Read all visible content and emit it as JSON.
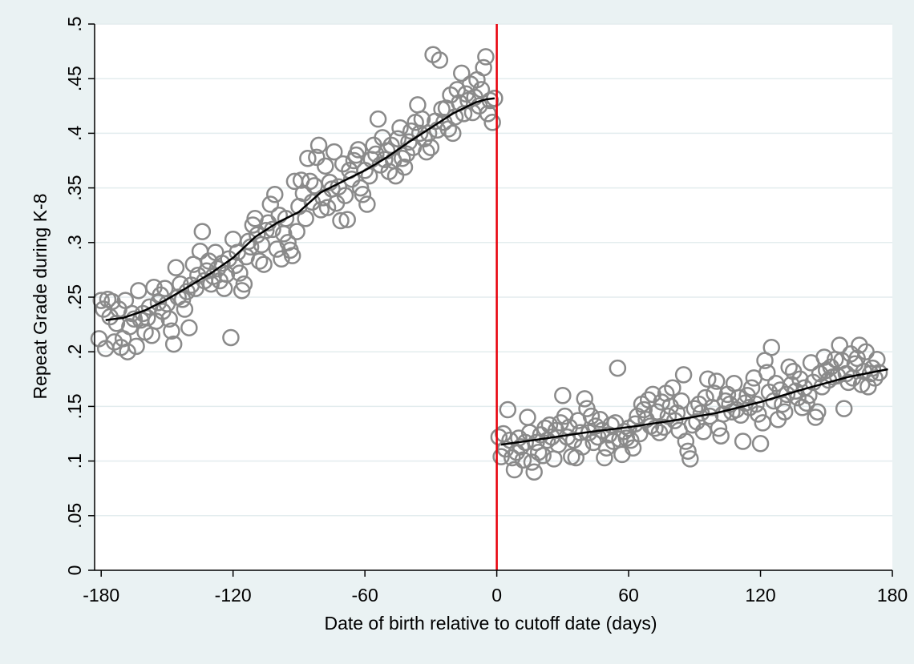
{
  "chart_data": {
    "type": "scatter",
    "title": "",
    "xlabel": "Date of birth relative to cutoff date (days)",
    "ylabel": "Repeat Grade during K-8",
    "xlim": [
      -183,
      180
    ],
    "ylim": [
      0,
      0.5
    ],
    "xticks": [
      -180,
      -120,
      -60,
      0,
      60,
      120,
      180
    ],
    "xtick_labels": [
      "-180",
      "-120",
      "-60",
      "0",
      "60",
      "120",
      "180"
    ],
    "yticks": [
      0,
      0.05,
      0.1,
      0.15,
      0.2,
      0.25,
      0.3,
      0.35,
      0.4,
      0.45,
      0.5
    ],
    "ytick_labels": [
      "0",
      ".05",
      ".1",
      ".15",
      ".2",
      ".25",
      ".3",
      ".35",
      ".4",
      ".45",
      ".5"
    ],
    "grid": true,
    "cutoff_line": {
      "x": 0,
      "color": "#e8000b"
    },
    "colors": {
      "background": "#eaf2f3",
      "plot_area": "#ffffff",
      "gridline": "#eaf2f3",
      "marker": "#8a8a8a",
      "fit_line": "#000000"
    },
    "series": [
      {
        "type": "lowess_fit",
        "segments": [
          {
            "x": [
              -178,
              -170,
              -160,
              -150,
              -140,
              -130,
              -120,
              -110,
              -100,
              -90,
              -80,
              -70,
              -60,
              -50,
              -40,
              -30,
              -20,
              -10,
              -5,
              -1
            ],
            "y": [
              0.229,
              0.231,
              0.238,
              0.248,
              0.26,
              0.272,
              0.286,
              0.305,
              0.318,
              0.328,
              0.346,
              0.356,
              0.366,
              0.378,
              0.392,
              0.405,
              0.418,
              0.428,
              0.431,
              0.432
            ]
          },
          {
            "x": [
              2,
              20,
              40,
              60,
              80,
              100,
              120,
              140,
              160,
              178
            ],
            "y": [
              0.115,
              0.12,
              0.126,
              0.131,
              0.137,
              0.144,
              0.154,
              0.166,
              0.177,
              0.184
            ]
          }
        ]
      }
    ],
    "scatter_points": [
      [
        -181,
        0.212
      ],
      [
        -180,
        0.247
      ],
      [
        -179,
        0.239
      ],
      [
        -178,
        0.203
      ],
      [
        -177,
        0.248
      ],
      [
        -176,
        0.232
      ],
      [
        -175,
        0.246
      ],
      [
        -174,
        0.209
      ],
      [
        -173,
        0.226
      ],
      [
        -172,
        0.239
      ],
      [
        -171,
        0.204
      ],
      [
        -170,
        0.212
      ],
      [
        -169,
        0.247
      ],
      [
        -168,
        0.2
      ],
      [
        -167,
        0.223
      ],
      [
        -166,
        0.235
      ],
      [
        -165,
        0.23
      ],
      [
        -164,
        0.205
      ],
      [
        -163,
        0.256
      ],
      [
        -162,
        0.229
      ],
      [
        -161,
        0.235
      ],
      [
        -160,
        0.218
      ],
      [
        -159,
        0.231
      ],
      [
        -158,
        0.241
      ],
      [
        -157,
        0.215
      ],
      [
        -156,
        0.259
      ],
      [
        -155,
        0.228
      ],
      [
        -154,
        0.245
      ],
      [
        -153,
        0.252
      ],
      [
        -152,
        0.237
      ],
      [
        -151,
        0.258
      ],
      [
        -150,
        0.244
      ],
      [
        -149,
        0.23
      ],
      [
        -148,
        0.219
      ],
      [
        -147,
        0.207
      ],
      [
        -146,
        0.277
      ],
      [
        -145,
        0.25
      ],
      [
        -144,
        0.262
      ],
      [
        -143,
        0.248
      ],
      [
        -142,
        0.239
      ],
      [
        -141,
        0.255
      ],
      [
        -140,
        0.222
      ],
      [
        -139,
        0.261
      ],
      [
        -138,
        0.28
      ],
      [
        -137,
        0.258
      ],
      [
        -136,
        0.27
      ],
      [
        -135,
        0.292
      ],
      [
        -134,
        0.31
      ],
      [
        -133,
        0.265
      ],
      [
        -132,
        0.274
      ],
      [
        -131,
        0.283
      ],
      [
        -130,
        0.262
      ],
      [
        -129,
        0.269
      ],
      [
        -128,
        0.291
      ],
      [
        -127,
        0.276
      ],
      [
        -126,
        0.265
      ],
      [
        -125,
        0.281
      ],
      [
        -124,
        0.258
      ],
      [
        -123,
        0.271
      ],
      [
        -122,
        0.285
      ],
      [
        -121,
        0.213
      ],
      [
        -120,
        0.303
      ],
      [
        -119,
        0.279
      ],
      [
        -118,
        0.291
      ],
      [
        -117,
        0.272
      ],
      [
        -116,
        0.256
      ],
      [
        -115,
        0.262
      ],
      [
        -114,
        0.287
      ],
      [
        -113,
        0.301
      ],
      [
        -112,
        0.296
      ],
      [
        -111,
        0.316
      ],
      [
        -110,
        0.322
      ],
      [
        -109,
        0.307
      ],
      [
        -108,
        0.283
      ],
      [
        -107,
        0.298
      ],
      [
        -106,
        0.28
      ],
      [
        -105,
        0.311
      ],
      [
        -104,
        0.318
      ],
      [
        -103,
        0.335
      ],
      [
        -102,
        0.312
      ],
      [
        -101,
        0.344
      ],
      [
        -100,
        0.294
      ],
      [
        -99,
        0.325
      ],
      [
        -98,
        0.285
      ],
      [
        -97,
        0.308
      ],
      [
        -96,
        0.322
      ],
      [
        -95,
        0.3
      ],
      [
        -94,
        0.293
      ],
      [
        -93,
        0.288
      ],
      [
        -92,
        0.356
      ],
      [
        -91,
        0.31
      ],
      [
        -90,
        0.333
      ],
      [
        -89,
        0.357
      ],
      [
        -88,
        0.345
      ],
      [
        -87,
        0.322
      ],
      [
        -86,
        0.377
      ],
      [
        -85,
        0.356
      ],
      [
        -84,
        0.337
      ],
      [
        -83,
        0.352
      ],
      [
        -82,
        0.378
      ],
      [
        -81,
        0.389
      ],
      [
        -80,
        0.33
      ],
      [
        -79,
        0.341
      ],
      [
        -78,
        0.37
      ],
      [
        -77,
        0.332
      ],
      [
        -76,
        0.355
      ],
      [
        -75,
        0.349
      ],
      [
        -74,
        0.383
      ],
      [
        -73,
        0.336
      ],
      [
        -72,
        0.351
      ],
      [
        -71,
        0.32
      ],
      [
        -70,
        0.372
      ],
      [
        -69,
        0.343
      ],
      [
        -68,
        0.321
      ],
      [
        -67,
        0.366
      ],
      [
        -66,
        0.358
      ],
      [
        -65,
        0.375
      ],
      [
        -64,
        0.38
      ],
      [
        -63,
        0.385
      ],
      [
        -62,
        0.35
      ],
      [
        -61,
        0.344
      ],
      [
        -60,
        0.366
      ],
      [
        -59,
        0.335
      ],
      [
        -58,
        0.361
      ],
      [
        -57,
        0.376
      ],
      [
        -56,
        0.389
      ],
      [
        -55,
        0.381
      ],
      [
        -54,
        0.413
      ],
      [
        -53,
        0.371
      ],
      [
        -52,
        0.396
      ],
      [
        -51,
        0.376
      ],
      [
        -50,
        0.384
      ],
      [
        -49,
        0.365
      ],
      [
        -48,
        0.389
      ],
      [
        -47,
        0.375
      ],
      [
        -46,
        0.361
      ],
      [
        -45,
        0.395
      ],
      [
        -44,
        0.405
      ],
      [
        -43,
        0.377
      ],
      [
        -42,
        0.369
      ],
      [
        -41,
        0.381
      ],
      [
        -40,
        0.392
      ],
      [
        -39,
        0.402
      ],
      [
        -38,
        0.387
      ],
      [
        -37,
        0.41
      ],
      [
        -36,
        0.426
      ],
      [
        -35,
        0.4
      ],
      [
        -34,
        0.413
      ],
      [
        -33,
        0.395
      ],
      [
        -32,
        0.383
      ],
      [
        -31,
        0.4
      ],
      [
        -30,
        0.387
      ],
      [
        -29,
        0.472
      ],
      [
        -28,
        0.411
      ],
      [
        -27,
        0.403
      ],
      [
        -26,
        0.467
      ],
      [
        -25,
        0.422
      ],
      [
        -24,
        0.41
      ],
      [
        -23,
        0.423
      ],
      [
        -22,
        0.404
      ],
      [
        -21,
        0.435
      ],
      [
        -20,
        0.4
      ],
      [
        -19,
        0.415
      ],
      [
        -18,
        0.44
      ],
      [
        -17,
        0.428
      ],
      [
        -16,
        0.455
      ],
      [
        -15,
        0.418
      ],
      [
        -14,
        0.436
      ],
      [
        -13,
        0.43
      ],
      [
        -12,
        0.445
      ],
      [
        -11,
        0.419
      ],
      [
        -10,
        0.433
      ],
      [
        -9,
        0.449
      ],
      [
        -8,
        0.425
      ],
      [
        -7,
        0.44
      ],
      [
        -6,
        0.46
      ],
      [
        -5,
        0.47
      ],
      [
        -4,
        0.418
      ],
      [
        -3,
        0.43
      ],
      [
        -2,
        0.41
      ],
      [
        -1,
        0.432
      ],
      [
        1,
        0.122
      ],
      [
        2,
        0.104
      ],
      [
        3,
        0.125
      ],
      [
        4,
        0.111
      ],
      [
        5,
        0.147
      ],
      [
        6,
        0.119
      ],
      [
        7,
        0.103
      ],
      [
        8,
        0.092
      ],
      [
        9,
        0.108
      ],
      [
        10,
        0.121
      ],
      [
        11,
        0.113
      ],
      [
        12,
        0.101
      ],
      [
        13,
        0.117
      ],
      [
        14,
        0.14
      ],
      [
        15,
        0.126
      ],
      [
        16,
        0.099
      ],
      [
        17,
        0.09
      ],
      [
        18,
        0.117
      ],
      [
        19,
        0.108
      ],
      [
        20,
        0.124
      ],
      [
        21,
        0.105
      ],
      [
        22,
        0.13
      ],
      [
        23,
        0.119
      ],
      [
        24,
        0.133
      ],
      [
        25,
        0.122
      ],
      [
        26,
        0.102
      ],
      [
        27,
        0.128
      ],
      [
        28,
        0.115
      ],
      [
        29,
        0.135
      ],
      [
        30,
        0.16
      ],
      [
        31,
        0.141
      ],
      [
        32,
        0.122
      ],
      [
        33,
        0.131
      ],
      [
        34,
        0.104
      ],
      [
        35,
        0.119
      ],
      [
        36,
        0.103
      ],
      [
        37,
        0.137
      ],
      [
        38,
        0.126
      ],
      [
        39,
        0.113
      ],
      [
        40,
        0.157
      ],
      [
        41,
        0.148
      ],
      [
        42,
        0.126
      ],
      [
        43,
        0.141
      ],
      [
        44,
        0.117
      ],
      [
        45,
        0.132
      ],
      [
        46,
        0.122
      ],
      [
        47,
        0.138
      ],
      [
        48,
        0.128
      ],
      [
        49,
        0.103
      ],
      [
        50,
        0.112
      ],
      [
        51,
        0.124
      ],
      [
        52,
        0.133
      ],
      [
        53,
        0.118
      ],
      [
        54,
        0.135
      ],
      [
        55,
        0.185
      ],
      [
        56,
        0.12
      ],
      [
        57,
        0.106
      ],
      [
        58,
        0.127
      ],
      [
        59,
        0.121
      ],
      [
        60,
        0.13
      ],
      [
        61,
        0.119
      ],
      [
        62,
        0.112
      ],
      [
        63,
        0.134
      ],
      [
        64,
        0.141
      ],
      [
        65,
        0.125
      ],
      [
        66,
        0.152
      ],
      [
        67,
        0.147
      ],
      [
        68,
        0.138
      ],
      [
        69,
        0.156
      ],
      [
        70,
        0.132
      ],
      [
        71,
        0.161
      ],
      [
        72,
        0.13
      ],
      [
        73,
        0.145
      ],
      [
        74,
        0.126
      ],
      [
        75,
        0.154
      ],
      [
        76,
        0.131
      ],
      [
        77,
        0.162
      ],
      [
        78,
        0.141
      ],
      [
        79,
        0.15
      ],
      [
        80,
        0.167
      ],
      [
        81,
        0.137
      ],
      [
        82,
        0.144
      ],
      [
        83,
        0.128
      ],
      [
        84,
        0.155
      ],
      [
        85,
        0.179
      ],
      [
        86,
        0.118
      ],
      [
        87,
        0.109
      ],
      [
        88,
        0.102
      ],
      [
        89,
        0.133
      ],
      [
        90,
        0.148
      ],
      [
        91,
        0.136
      ],
      [
        92,
        0.152
      ],
      [
        93,
        0.144
      ],
      [
        94,
        0.127
      ],
      [
        95,
        0.158
      ],
      [
        96,
        0.175
      ],
      [
        97,
        0.141
      ],
      [
        98,
        0.149
      ],
      [
        99,
        0.162
      ],
      [
        100,
        0.173
      ],
      [
        101,
        0.13
      ],
      [
        102,
        0.123
      ],
      [
        103,
        0.143
      ],
      [
        104,
        0.155
      ],
      [
        105,
        0.161
      ],
      [
        106,
        0.152
      ],
      [
        107,
        0.145
      ],
      [
        108,
        0.171
      ],
      [
        109,
        0.147
      ],
      [
        110,
        0.158
      ],
      [
        111,
        0.142
      ],
      [
        112,
        0.118
      ],
      [
        113,
        0.153
      ],
      [
        114,
        0.16
      ],
      [
        115,
        0.149
      ],
      [
        116,
        0.167
      ],
      [
        117,
        0.176
      ],
      [
        118,
        0.152
      ],
      [
        119,
        0.143
      ],
      [
        120,
        0.116
      ],
      [
        121,
        0.135
      ],
      [
        122,
        0.192
      ],
      [
        123,
        0.181
      ],
      [
        124,
        0.163
      ],
      [
        125,
        0.204
      ],
      [
        126,
        0.155
      ],
      [
        127,
        0.171
      ],
      [
        128,
        0.138
      ],
      [
        129,
        0.165
      ],
      [
        130,
        0.152
      ],
      [
        131,
        0.145
      ],
      [
        132,
        0.161
      ],
      [
        133,
        0.186
      ],
      [
        134,
        0.17
      ],
      [
        135,
        0.182
      ],
      [
        136,
        0.164
      ],
      [
        137,
        0.158
      ],
      [
        138,
        0.175
      ],
      [
        139,
        0.149
      ],
      [
        140,
        0.167
      ],
      [
        141,
        0.153
      ],
      [
        142,
        0.16
      ],
      [
        143,
        0.19
      ],
      [
        144,
        0.172
      ],
      [
        145,
        0.14
      ],
      [
        146,
        0.145
      ],
      [
        147,
        0.18
      ],
      [
        148,
        0.168
      ],
      [
        149,
        0.195
      ],
      [
        150,
        0.183
      ],
      [
        151,
        0.174
      ],
      [
        152,
        0.186
      ],
      [
        153,
        0.177
      ],
      [
        154,
        0.193
      ],
      [
        155,
        0.178
      ],
      [
        156,
        0.206
      ],
      [
        157,
        0.192
      ],
      [
        158,
        0.148
      ],
      [
        159,
        0.18
      ],
      [
        160,
        0.172
      ],
      [
        161,
        0.198
      ],
      [
        162,
        0.176
      ],
      [
        163,
        0.189
      ],
      [
        164,
        0.194
      ],
      [
        165,
        0.206
      ],
      [
        166,
        0.17
      ],
      [
        167,
        0.182
      ],
      [
        168,
        0.2
      ],
      [
        169,
        0.168
      ],
      [
        170,
        0.18
      ],
      [
        171,
        0.185
      ],
      [
        172,
        0.176
      ],
      [
        173,
        0.193
      ],
      [
        174,
        0.181
      ]
    ]
  }
}
